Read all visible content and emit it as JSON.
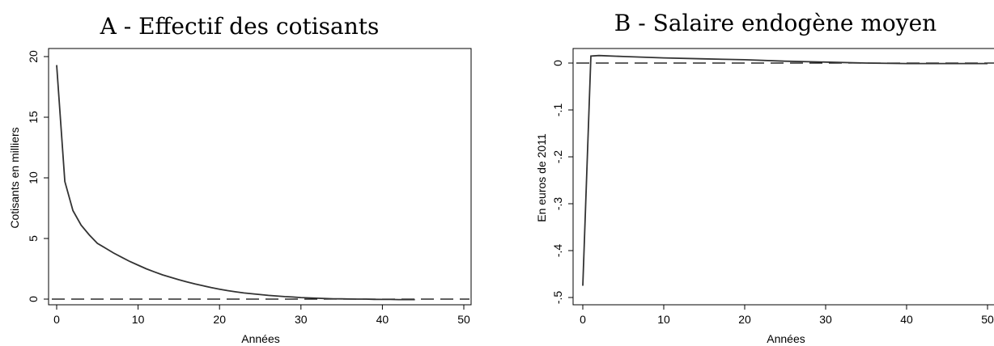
{
  "chart_data": [
    {
      "type": "line",
      "title": "A - Effectif des cotisants",
      "xlabel": "Années",
      "ylabel": "Cotisants en milliers",
      "xlim": [
        0,
        50
      ],
      "ylim": [
        0,
        20
      ],
      "xticks": [
        "0",
        "10",
        "20",
        "30",
        "40",
        "50"
      ],
      "yticks": [
        "0",
        "5",
        "10",
        "15",
        "20"
      ],
      "grid": false,
      "reference_line": {
        "y": 0,
        "style": "dashed"
      },
      "series": [
        {
          "x": [
            0,
            1,
            2,
            3,
            4,
            5,
            6,
            7,
            8,
            9,
            10,
            11,
            12,
            13,
            14,
            15,
            16,
            17,
            18,
            19,
            20,
            21,
            22,
            23,
            24,
            25,
            26,
            27,
            28,
            29,
            30,
            31,
            32,
            33,
            34,
            35,
            36,
            37,
            38,
            39,
            40,
            41,
            42,
            43,
            44
          ],
          "y": [
            19.3,
            9.7,
            7.3,
            6.1,
            5.3,
            4.6,
            4.2,
            3.8,
            3.45,
            3.1,
            2.8,
            2.5,
            2.25,
            2.0,
            1.8,
            1.6,
            1.42,
            1.25,
            1.1,
            0.95,
            0.82,
            0.7,
            0.6,
            0.51,
            0.44,
            0.37,
            0.31,
            0.26,
            0.21,
            0.17,
            0.13,
            0.1,
            0.07,
            0.05,
            0.03,
            0.02,
            0.01,
            0.0,
            0.0,
            -0.02,
            -0.03,
            -0.03,
            -0.04,
            -0.04,
            -0.04
          ]
        }
      ]
    },
    {
      "type": "line",
      "title": "B - Salaire endogène moyen",
      "xlabel": "Années",
      "ylabel": "En euros de 2011",
      "xlim": [
        0,
        50
      ],
      "ylim": [
        -0.5,
        0
      ],
      "xticks": [
        "0",
        "10",
        "20",
        "30",
        "40",
        "50"
      ],
      "yticks": [
        "-.5",
        "-.4",
        "-.3",
        "-.2",
        "-.1",
        "0"
      ],
      "grid": false,
      "reference_line": {
        "y": 0,
        "style": "dashed"
      },
      "series": [
        {
          "x": [
            0,
            1,
            2,
            5,
            10,
            15,
            20,
            25,
            30,
            35,
            40,
            45,
            50
          ],
          "y": [
            -0.475,
            0.015,
            0.016,
            0.014,
            0.011,
            0.009,
            0.007,
            0.004,
            0.002,
            0.0,
            -0.001,
            -0.001,
            -0.001
          ]
        }
      ]
    }
  ]
}
